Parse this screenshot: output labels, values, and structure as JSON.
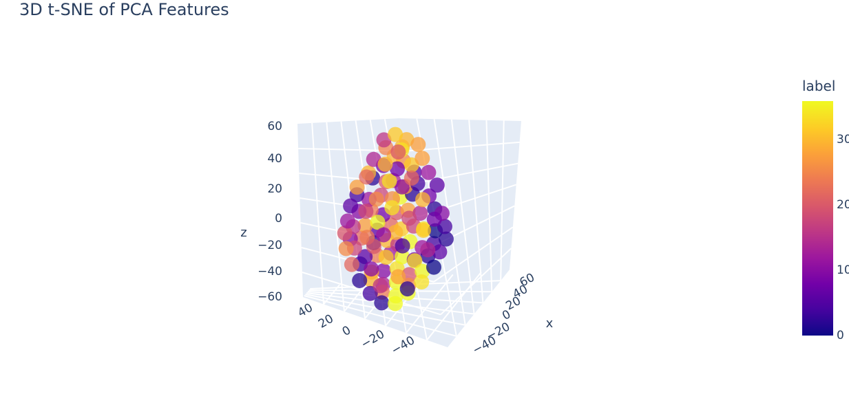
{
  "chart_data": {
    "type": "scatter3d",
    "title": "3D t-SNE of PCA Features",
    "axes": {
      "x": {
        "label": "x",
        "ticks": [
          "60",
          "40",
          "20",
          "0",
          "−20",
          "−40"
        ]
      },
      "y": {
        "label": "",
        "ticks": [
          "40",
          "20",
          "0",
          "−20",
          "−40"
        ]
      },
      "z": {
        "label": "z",
        "ticks": [
          "60",
          "40",
          "20",
          "0",
          "−20",
          "−40",
          "−60"
        ]
      }
    },
    "colorbar": {
      "title": "label",
      "ticks": [
        "0",
        "10",
        "20",
        "30"
      ],
      "range": [
        0,
        36
      ],
      "colorscale": [
        "#0d0887",
        "#46039f",
        "#7201a8",
        "#9c179e",
        "#bd3786",
        "#d8576b",
        "#ed7953",
        "#fb9f3a",
        "#fdca26",
        "#f0f921"
      ]
    },
    "points": [
      [
        -8,
        -10,
        58,
        32
      ],
      [
        4,
        -14,
        56,
        30
      ],
      [
        -14,
        -18,
        50,
        25
      ],
      [
        2,
        -20,
        52,
        30
      ],
      [
        12,
        -6,
        52,
        28
      ],
      [
        -2,
        -10,
        48,
        34
      ],
      [
        -18,
        -12,
        54,
        16
      ],
      [
        -24,
        -22,
        42,
        14
      ],
      [
        -4,
        -24,
        46,
        30
      ],
      [
        6,
        -28,
        44,
        26
      ],
      [
        10,
        -18,
        40,
        32
      ],
      [
        -12,
        -30,
        40,
        8
      ],
      [
        18,
        -12,
        44,
        28
      ],
      [
        -26,
        -30,
        34,
        30
      ],
      [
        -30,
        -24,
        30,
        22
      ],
      [
        -20,
        -36,
        32,
        2
      ],
      [
        -8,
        -34,
        30,
        20
      ],
      [
        0,
        -38,
        32,
        14
      ],
      [
        10,
        -34,
        28,
        28
      ],
      [
        20,
        -30,
        30,
        4
      ],
      [
        26,
        -18,
        36,
        12
      ],
      [
        -36,
        -32,
        24,
        28
      ],
      [
        -34,
        -38,
        20,
        4
      ],
      [
        -22,
        -40,
        18,
        12
      ],
      [
        -10,
        -42,
        22,
        18
      ],
      [
        0,
        -40,
        20,
        26
      ],
      [
        8,
        -42,
        22,
        36
      ],
      [
        18,
        -38,
        24,
        2
      ],
      [
        30,
        -28,
        22,
        8
      ],
      [
        34,
        -18,
        28,
        6
      ],
      [
        -40,
        -38,
        12,
        6
      ],
      [
        -30,
        -44,
        10,
        10
      ],
      [
        -18,
        -46,
        12,
        24
      ],
      [
        -6,
        -48,
        10,
        8
      ],
      [
        6,
        -46,
        12,
        20
      ],
      [
        16,
        -44,
        14,
        28
      ],
      [
        26,
        -40,
        12,
        14
      ],
      [
        36,
        -30,
        14,
        2
      ],
      [
        40,
        -22,
        10,
        10
      ],
      [
        -42,
        -40,
        2,
        12
      ],
      [
        -34,
        -48,
        0,
        16
      ],
      [
        -22,
        -50,
        2,
        28
      ],
      [
        -10,
        -52,
        0,
        6
      ],
      [
        2,
        -50,
        4,
        22
      ],
      [
        12,
        -50,
        2,
        32
      ],
      [
        22,
        -46,
        4,
        18
      ],
      [
        30,
        -42,
        2,
        34
      ],
      [
        38,
        -34,
        0,
        0
      ],
      [
        44,
        -26,
        2,
        4
      ],
      [
        -44,
        -42,
        -6,
        20
      ],
      [
        -36,
        -50,
        -8,
        10
      ],
      [
        -24,
        -54,
        -6,
        22
      ],
      [
        -12,
        -56,
        -8,
        2
      ],
      [
        0,
        -54,
        -6,
        30
      ],
      [
        10,
        -54,
        -8,
        16
      ],
      [
        20,
        -50,
        -6,
        36
      ],
      [
        30,
        -46,
        -10,
        12
      ],
      [
        38,
        -38,
        -8,
        4
      ],
      [
        46,
        -28,
        -6,
        2
      ],
      [
        -42,
        -44,
        -16,
        26
      ],
      [
        -32,
        -50,
        -14,
        18
      ],
      [
        -20,
        -56,
        -18,
        6
      ],
      [
        -8,
        -58,
        -16,
        24
      ],
      [
        4,
        -56,
        -14,
        12
      ],
      [
        14,
        -54,
        -16,
        36
      ],
      [
        24,
        -50,
        -18,
        8
      ],
      [
        34,
        -42,
        -16,
        2
      ],
      [
        42,
        -34,
        -14,
        6
      ],
      [
        -36,
        -46,
        -26,
        22
      ],
      [
        -26,
        -52,
        -24,
        4
      ],
      [
        -14,
        -56,
        -28,
        28
      ],
      [
        -2,
        -58,
        -26,
        10
      ],
      [
        10,
        -56,
        -24,
        34
      ],
      [
        20,
        -52,
        -28,
        20
      ],
      [
        30,
        -46,
        -26,
        36
      ],
      [
        38,
        -38,
        -24,
        0
      ],
      [
        -28,
        -48,
        -36,
        2
      ],
      [
        -16,
        -52,
        -34,
        30
      ],
      [
        -4,
        -54,
        -36,
        14
      ],
      [
        8,
        -52,
        -34,
        36
      ],
      [
        18,
        -48,
        -36,
        26
      ],
      [
        28,
        -42,
        -34,
        34
      ],
      [
        -18,
        -48,
        -44,
        4
      ],
      [
        -6,
        -50,
        -42,
        24
      ],
      [
        6,
        -48,
        -44,
        36
      ],
      [
        16,
        -44,
        -42,
        36
      ],
      [
        -8,
        -46,
        -50,
        2
      ],
      [
        4,
        -44,
        -50,
        36
      ],
      [
        -6,
        -8,
        46,
        20
      ],
      [
        -16,
        -14,
        38,
        30
      ],
      [
        14,
        -22,
        36,
        6
      ],
      [
        -10,
        -20,
        28,
        34
      ],
      [
        4,
        -26,
        26,
        10
      ],
      [
        -20,
        -26,
        16,
        26
      ],
      [
        22,
        -22,
        18,
        30
      ],
      [
        -4,
        -30,
        12,
        34
      ],
      [
        12,
        -30,
        6,
        18
      ],
      [
        -16,
        -34,
        2,
        36
      ],
      [
        24,
        -26,
        -2,
        32
      ],
      [
        -28,
        -28,
        -10,
        24
      ],
      [
        8,
        -36,
        -12,
        4
      ],
      [
        -6,
        -40,
        -20,
        32
      ],
      [
        18,
        -32,
        -22,
        34
      ],
      [
        -22,
        -34,
        -30,
        10
      ],
      [
        6,
        -42,
        -32,
        28
      ],
      [
        -12,
        -38,
        -40,
        16
      ],
      [
        14,
        -40,
        -40,
        2
      ],
      [
        0,
        -32,
        -4,
        30
      ],
      [
        -32,
        -20,
        6,
        18
      ],
      [
        30,
        -14,
        4,
        8
      ],
      [
        -26,
        -16,
        -18,
        20
      ],
      [
        26,
        -20,
        -16,
        14
      ],
      [
        -4,
        -16,
        36,
        8
      ],
      [
        8,
        -12,
        30,
        22
      ],
      [
        -14,
        -24,
        -8,
        12
      ]
    ]
  }
}
